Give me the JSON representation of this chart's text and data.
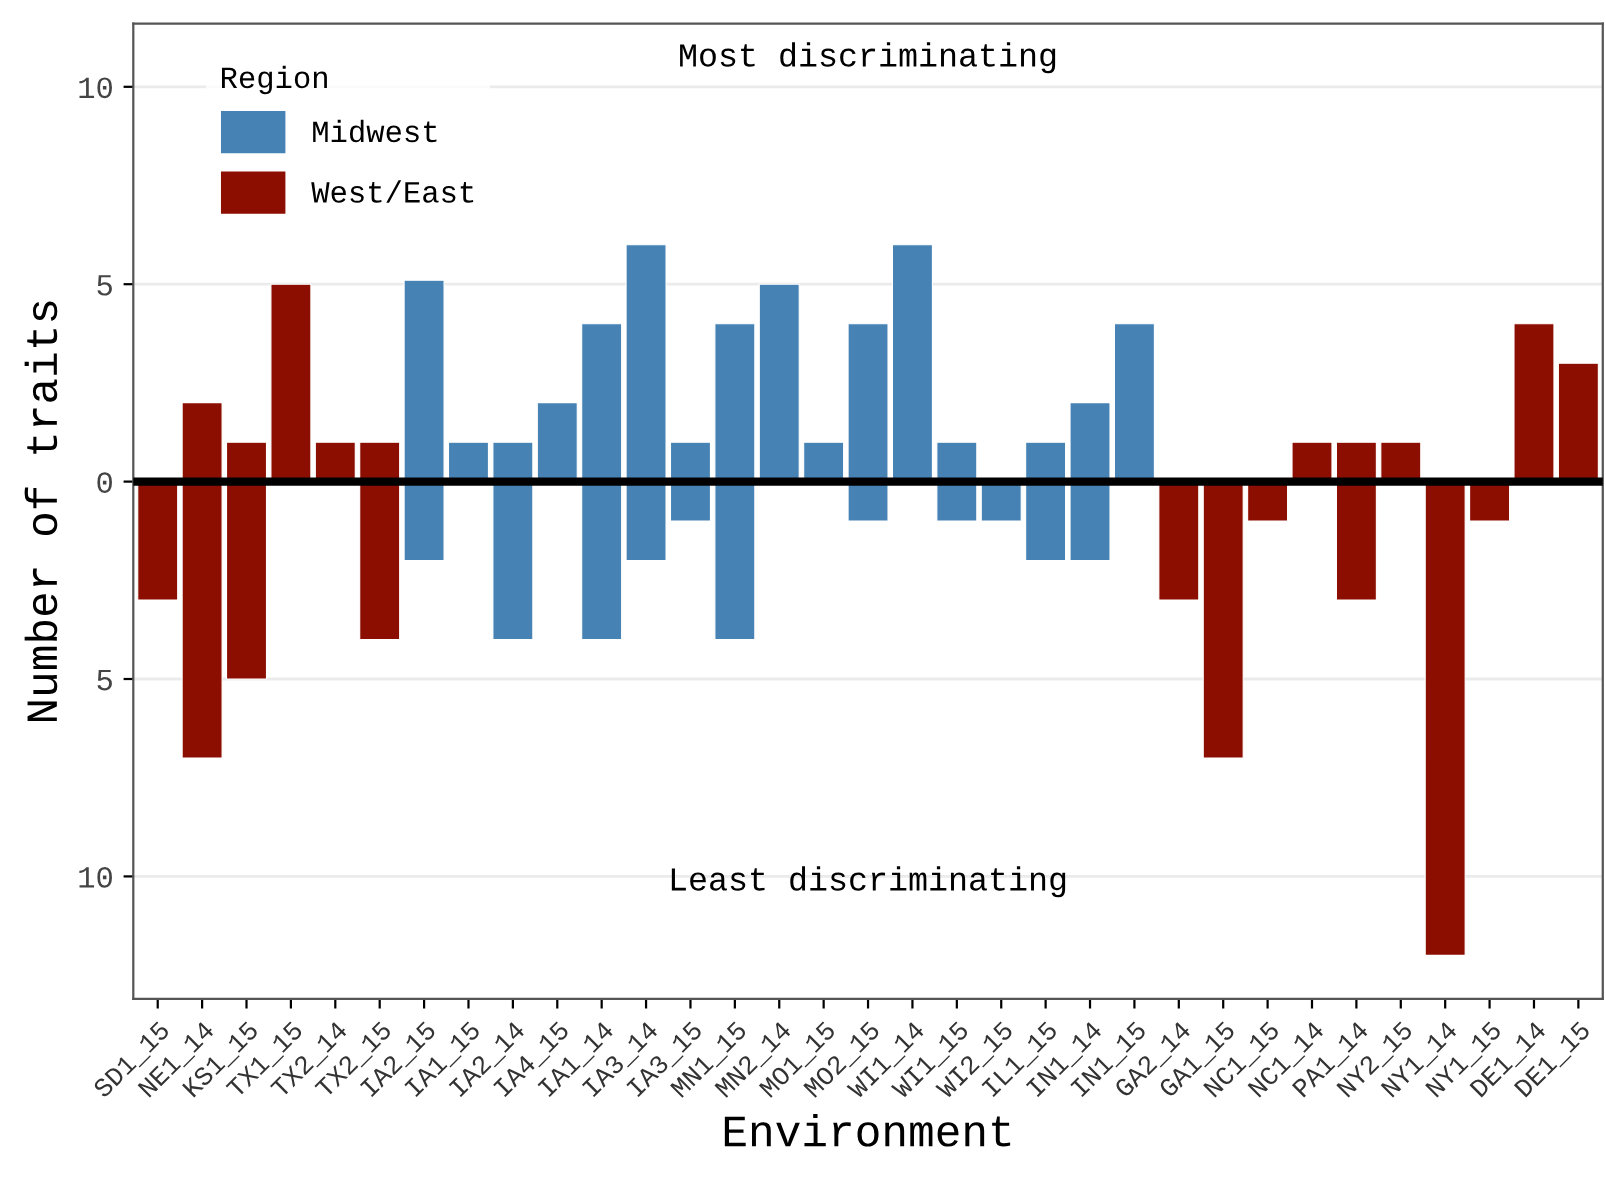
{
  "chart_data": {
    "type": "bar",
    "xlabel": "Environment",
    "ylabel": "Number of traits",
    "legend_title": "Region",
    "legend": "top left",
    "categories": [
      "SD1_15",
      "NE1_14",
      "KS1_15",
      "TX1_15",
      "TX2_14",
      "TX2_15",
      "IA2_15",
      "IA1_15",
      "IA2_14",
      "IA4_15",
      "IA1_14",
      "IA3_14",
      "IA3_15",
      "MN1_15",
      "MN2_14",
      "MO1_15",
      "MO2_15",
      "WI1_14",
      "WI1_15",
      "WI2_15",
      "IL1_15",
      "IN1_14",
      "IN1_15",
      "GA2_14",
      "GA1_15",
      "NC1_15",
      "NC1_14",
      "PA1_14",
      "NY2_15",
      "NY1_14",
      "NY1_15",
      "DE1_14",
      "DE1_15"
    ],
    "series": [
      {
        "name": "Midwest",
        "color": "#4682b4",
        "values": [
          null,
          null,
          null,
          null,
          null,
          null,
          5.1,
          1,
          1,
          2,
          4,
          6,
          1,
          4,
          5,
          1,
          4,
          6,
          1,
          null,
          1,
          2,
          4,
          null,
          null,
          null,
          null,
          null,
          null,
          null,
          null,
          null,
          null
        ]
      },
      {
        "name": "West/East",
        "color": "#8b0e00",
        "values": [
          null,
          2,
          1,
          5,
          1,
          1,
          null,
          null,
          null,
          null,
          null,
          null,
          null,
          null,
          null,
          null,
          null,
          null,
          null,
          null,
          null,
          null,
          null,
          null,
          null,
          null,
          1,
          1,
          1,
          null,
          null,
          4,
          3
        ]
      },
      {
        "color": "#4682b4",
        "values": [
          null,
          null,
          null,
          null,
          null,
          null,
          -2,
          null,
          -4,
          null,
          -4,
          -2,
          -1,
          -4,
          null,
          null,
          -1,
          null,
          -1,
          -1,
          -2,
          -2,
          null,
          null,
          null,
          null,
          null,
          null,
          null,
          null,
          null,
          null,
          null
        ]
      },
      {
        "color": "#8b0e00",
        "values": [
          -3,
          -7,
          -5,
          null,
          null,
          -4,
          null,
          null,
          null,
          null,
          null,
          null,
          null,
          null,
          null,
          null,
          null,
          null,
          null,
          null,
          null,
          null,
          null,
          -3,
          -7,
          -1,
          null,
          -3,
          null,
          -12,
          -1,
          null,
          null
        ]
      }
    ],
    "ylim": [
      -13.1,
      11.6
    ],
    "yticks": [
      {
        "value": -10,
        "label": "10"
      },
      {
        "value": -5,
        "label": "5"
      },
      0,
      5,
      10
    ],
    "grid": "y",
    "ref_lines": [
      {
        "axis": "y",
        "value": 0,
        "color": "#000000"
      }
    ],
    "annotations": [
      "Most discriminating",
      "Least discriminating"
    ]
  }
}
